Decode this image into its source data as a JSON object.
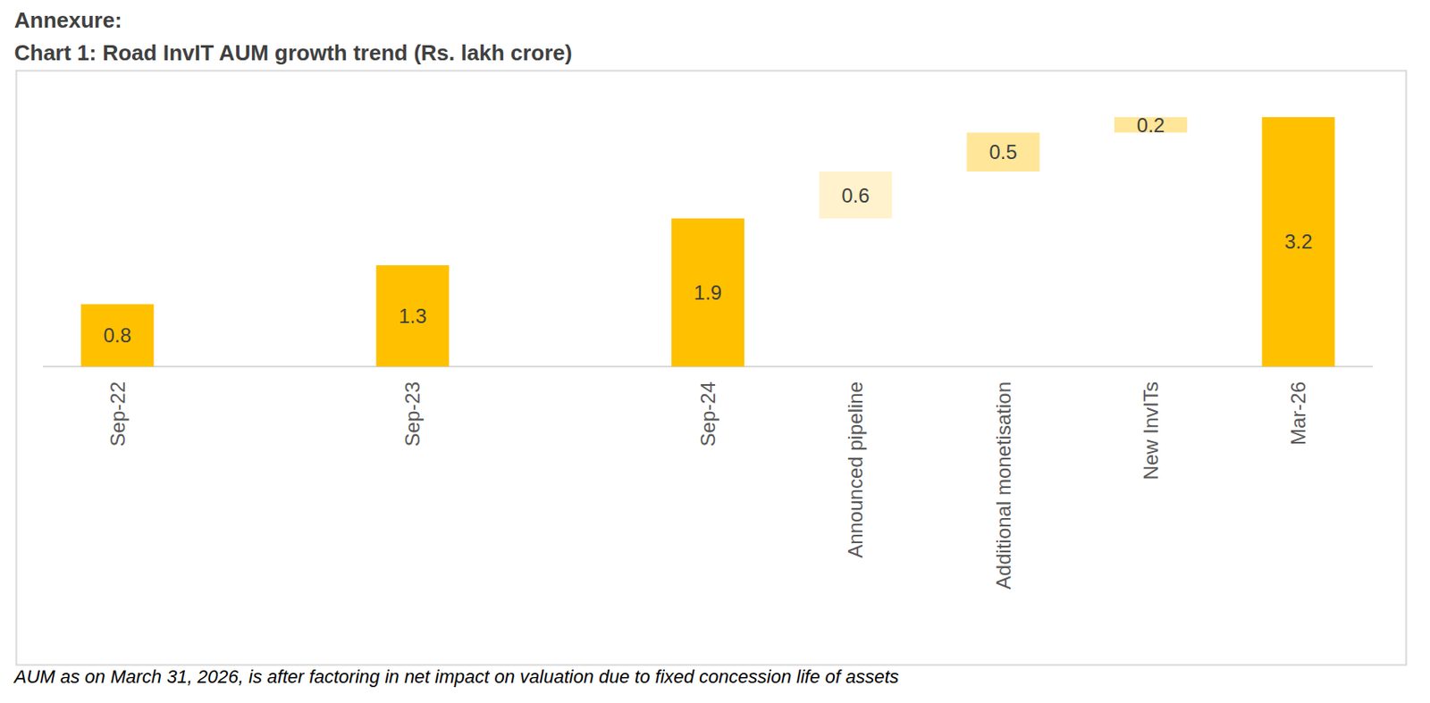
{
  "chart_data": {
    "type": "waterfall",
    "title": "Annexure:",
    "subtitle": "Chart 1: Road InvIT AUM growth trend (Rs. lakh crore)",
    "annotations": [
      "AUM as on March 31, 2026, is after factoring in net impact on valuation due to fixed concession life of assets"
    ],
    "categories": [
      "Sep-22",
      null,
      "Sep-23",
      null,
      "Sep-24",
      "Announced pipeline",
      "Additional monetisation",
      "New InvITs",
      "Mar-26"
    ],
    "series": [
      {
        "type": "bar",
        "color": "#FFC000",
        "values": [
          0.8,
          null,
          1.3,
          null,
          1.9,
          null,
          null,
          null,
          3.2
        ]
      },
      {
        "type": "waterfall",
        "colors": [
          null,
          null,
          null,
          null,
          null,
          "#FFF2CC",
          "#FFE699",
          "#FFE699",
          null
        ],
        "values": [
          null,
          null,
          null,
          null,
          null,
          0.6,
          0.5,
          0.2,
          null
        ]
      }
    ],
    "ylim": [
      0,
      3.8
    ],
    "data_labels": true,
    "tick_labels": "x",
    "grid": false
  }
}
